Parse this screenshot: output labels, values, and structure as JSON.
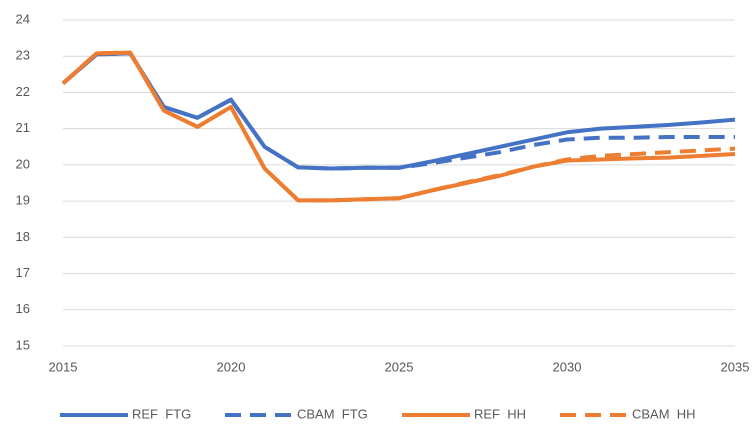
{
  "chart_data": {
    "type": "line",
    "x": [
      2015,
      2016,
      2017,
      2018,
      2019,
      2020,
      2021,
      2022,
      2023,
      2024,
      2025,
      2026,
      2027,
      2028,
      2029,
      2030,
      2031,
      2032,
      2033,
      2034,
      2035
    ],
    "series": [
      {
        "name": "REF  FTG",
        "color": "#4472c4",
        "dashed": false,
        "values": [
          22.25,
          23.05,
          23.08,
          21.6,
          21.3,
          21.8,
          20.5,
          19.93,
          19.9,
          19.92,
          19.92,
          20.1,
          20.3,
          20.5,
          20.7,
          20.9,
          21.0,
          21.05,
          21.1,
          21.17,
          21.25
        ]
      },
      {
        "name": "CBAM  FTG",
        "color": "#4472c4",
        "dashed": true,
        "values": [
          22.25,
          23.05,
          23.08,
          21.6,
          21.3,
          21.8,
          20.5,
          19.93,
          19.9,
          19.92,
          19.92,
          20.05,
          20.2,
          20.35,
          20.55,
          20.7,
          20.75,
          20.75,
          20.77,
          20.77,
          20.77
        ]
      },
      {
        "name": "REF  HH",
        "color": "#ed7d31",
        "dashed": false,
        "values": [
          22.25,
          23.08,
          23.1,
          21.5,
          21.05,
          21.6,
          19.9,
          19.02,
          19.02,
          19.05,
          19.08,
          19.3,
          19.5,
          19.7,
          19.95,
          20.12,
          20.15,
          20.18,
          20.2,
          20.25,
          20.3
        ]
      },
      {
        "name": "CBAM  HH",
        "color": "#ed7d31",
        "dashed": true,
        "values": [
          22.25,
          23.08,
          23.1,
          21.5,
          21.05,
          21.6,
          19.9,
          19.02,
          19.02,
          19.05,
          19.08,
          19.3,
          19.52,
          19.72,
          19.95,
          20.15,
          20.25,
          20.3,
          20.35,
          20.4,
          20.45
        ]
      }
    ],
    "xlim": [
      2015,
      2035
    ],
    "xticks": [
      2015,
      2020,
      2025,
      2030,
      2035
    ],
    "ylim": [
      15,
      24
    ],
    "yticks": [
      15,
      16,
      17,
      18,
      19,
      20,
      21,
      22,
      23,
      24
    ],
    "grid": true,
    "legend": "bottom"
  }
}
